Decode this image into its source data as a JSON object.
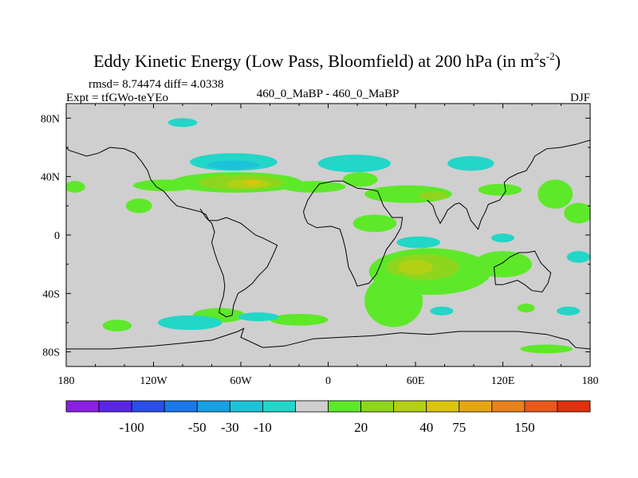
{
  "chart_data": {
    "type": "heatmap",
    "title_main": "Eddy Kinetic Energy (Low Pass, Bloomfield) at 200 hPa (in m",
    "title_sup1": "2",
    "title_s": "s",
    "title_sup2": "-2",
    "title_close": ")",
    "stats": "rmsd= 8.74474 diff= 4.0338",
    "experiment": "Expt = tfGWo-teYEo",
    "comparison": "460_0_MaBP - 460_0_MaBP",
    "season": "DJF",
    "x_ticks": [
      "180",
      "120W",
      "60W",
      "0",
      "60E",
      "120E",
      "180"
    ],
    "x_values": [
      -180,
      -120,
      -60,
      0,
      60,
      120,
      180
    ],
    "y_ticks": [
      "80N",
      "40N",
      "0",
      "40S",
      "80S"
    ],
    "y_values": [
      80,
      40,
      0,
      -40,
      -80
    ],
    "xlim": [
      -180,
      180
    ],
    "ylim": [
      -90,
      90
    ],
    "colorbar": {
      "colors": [
        "#8a1fe0",
        "#5a26e6",
        "#2b4ee8",
        "#1a78e8",
        "#18a0e2",
        "#1cc3d8",
        "#22d6c8",
        "#cfcfcf",
        "#5ee82a",
        "#8ed61e",
        "#b4d014",
        "#dcc40c",
        "#e6a614",
        "#e8821c",
        "#e85a1c",
        "#e0300e"
      ],
      "labels": [
        "-100",
        "-50",
        "-30",
        "-10",
        "20",
        "40",
        "75",
        "150"
      ],
      "label_after_box": [
        2,
        4,
        5,
        6,
        9,
        11,
        12,
        14
      ]
    },
    "blobs": [
      {
        "lon": -63,
        "lat": 36,
        "r_lon": 45,
        "r_lat": 7,
        "level": 8
      },
      {
        "lon": -60,
        "lat": 36,
        "r_lon": 30,
        "r_lat": 5,
        "level": 9
      },
      {
        "lon": -55,
        "lat": 35,
        "r_lon": 15,
        "r_lat": 3,
        "level": 10
      },
      {
        "lon": -52,
        "lat": 36,
        "r_lon": 5,
        "r_lat": 2,
        "level": 11
      },
      {
        "lon": -112,
        "lat": 34,
        "r_lon": 22,
        "r_lat": 4,
        "level": 8
      },
      {
        "lon": -10,
        "lat": 33,
        "r_lon": 22,
        "r_lat": 4,
        "level": 8
      },
      {
        "lon": 22,
        "lat": 38,
        "r_lon": 12,
        "r_lat": 5,
        "level": 8
      },
      {
        "lon": 55,
        "lat": 28,
        "r_lon": 30,
        "r_lat": 6,
        "level": 8
      },
      {
        "lon": 72,
        "lat": 27,
        "r_lon": 10,
        "r_lat": 3,
        "level": 9
      },
      {
        "lon": 118,
        "lat": 31,
        "r_lon": 15,
        "r_lat": 4,
        "level": 8
      },
      {
        "lon": -174,
        "lat": 33,
        "r_lon": 7,
        "r_lat": 4,
        "level": 8
      },
      {
        "lon": -130,
        "lat": 20,
        "r_lon": 9,
        "r_lat": 5,
        "level": 8
      },
      {
        "lon": 156,
        "lat": 28,
        "r_lon": 12,
        "r_lat": 10,
        "level": 8
      },
      {
        "lon": 172,
        "lat": 15,
        "r_lon": 10,
        "r_lat": 7,
        "level": 8
      },
      {
        "lon": 32,
        "lat": 8,
        "r_lon": 15,
        "r_lat": 6,
        "level": 8
      },
      {
        "lon": 70,
        "lat": -25,
        "r_lon": 42,
        "r_lat": 16,
        "level": 8
      },
      {
        "lon": 65,
        "lat": -22,
        "r_lon": 25,
        "r_lat": 9,
        "level": 9
      },
      {
        "lon": 60,
        "lat": -22,
        "r_lon": 12,
        "r_lat": 5,
        "level": 10
      },
      {
        "lon": 45,
        "lat": -45,
        "r_lon": 20,
        "r_lat": 18,
        "level": 8
      },
      {
        "lon": 120,
        "lat": -20,
        "r_lon": 20,
        "r_lat": 9,
        "level": 8
      },
      {
        "lon": 136,
        "lat": -50,
        "r_lon": 6,
        "r_lat": 3,
        "level": 8
      },
      {
        "lon": 150,
        "lat": -78,
        "r_lon": 18,
        "r_lat": 3,
        "level": 8
      },
      {
        "lon": -75,
        "lat": -55,
        "r_lon": 18,
        "r_lat": 5,
        "level": 8
      },
      {
        "lon": -20,
        "lat": -58,
        "r_lon": 20,
        "r_lat": 4,
        "level": 8
      },
      {
        "lon": -145,
        "lat": -62,
        "r_lon": 10,
        "r_lat": 4,
        "level": 8
      },
      {
        "lon": -65,
        "lat": 50,
        "r_lon": 30,
        "r_lat": 6,
        "level": 6
      },
      {
        "lon": -65,
        "lat": 48,
        "r_lon": 18,
        "r_lat": 3,
        "level": 5
      },
      {
        "lon": 18,
        "lat": 49,
        "r_lon": 25,
        "r_lat": 6,
        "level": 6
      },
      {
        "lon": 98,
        "lat": 49,
        "r_lon": 16,
        "r_lat": 5,
        "level": 6
      },
      {
        "lon": -100,
        "lat": 77,
        "r_lon": 10,
        "r_lat": 3,
        "level": 6
      },
      {
        "lon": 62,
        "lat": -5,
        "r_lon": 15,
        "r_lat": 4,
        "level": 6
      },
      {
        "lon": 120,
        "lat": -2,
        "r_lon": 8,
        "r_lat": 3,
        "level": 6
      },
      {
        "lon": 172,
        "lat": -15,
        "r_lon": 8,
        "r_lat": 4,
        "level": 6
      },
      {
        "lon": -95,
        "lat": -60,
        "r_lon": 22,
        "r_lat": 5,
        "level": 6
      },
      {
        "lon": -48,
        "lat": -56,
        "r_lon": 14,
        "r_lat": 3,
        "level": 6
      },
      {
        "lon": 78,
        "lat": -52,
        "r_lon": 8,
        "r_lat": 3,
        "level": 6
      },
      {
        "lon": 165,
        "lat": -52,
        "r_lon": 8,
        "r_lat": 3,
        "level": 6
      }
    ],
    "coastlines": [
      {
        "name": "americas-coast",
        "points": [
          [
            -88,
            18
          ],
          [
            -84,
            12
          ],
          [
            -80,
            8
          ],
          [
            -78,
            2
          ],
          [
            -80,
            -5
          ],
          [
            -78,
            -12
          ],
          [
            -76,
            -18
          ],
          [
            -72,
            -28
          ],
          [
            -71,
            -35
          ],
          [
            -72,
            -42
          ],
          [
            -74,
            -48
          ],
          [
            -75,
            -53
          ],
          [
            -70,
            -56
          ],
          [
            -66,
            -55
          ],
          [
            -65,
            -48
          ],
          [
            -62,
            -40
          ],
          [
            -57,
            -37
          ],
          [
            -52,
            -33
          ],
          [
            -48,
            -28
          ],
          [
            -42,
            -22
          ],
          [
            -38,
            -14
          ],
          [
            -35,
            -7
          ],
          [
            -45,
            -2
          ],
          [
            -50,
            0
          ],
          [
            -60,
            8
          ],
          [
            -70,
            12
          ],
          [
            -76,
            10
          ],
          [
            -82,
            10
          ],
          [
            -84,
            14
          ],
          [
            -88,
            16
          ],
          [
            -96,
            18
          ],
          [
            -104,
            20
          ],
          [
            -108,
            24
          ],
          [
            -113,
            30
          ],
          [
            -118,
            33
          ],
          [
            -122,
            38
          ],
          [
            -124,
            44
          ],
          [
            -128,
            50
          ],
          [
            -133,
            56
          ],
          [
            -140,
            59
          ],
          [
            -150,
            60
          ],
          [
            -158,
            56
          ],
          [
            -166,
            54
          ],
          [
            -172,
            56
          ],
          [
            -178,
            58
          ],
          [
            -180,
            60
          ]
        ]
      },
      {
        "name": "africa-coast",
        "points": [
          [
            -16,
            12
          ],
          [
            -17,
            16
          ],
          [
            -14,
            24
          ],
          [
            -10,
            30
          ],
          [
            -6,
            35
          ],
          [
            4,
            37
          ],
          [
            10,
            37
          ],
          [
            20,
            32
          ],
          [
            30,
            31
          ],
          [
            34,
            30
          ],
          [
            38,
            20
          ],
          [
            44,
            12
          ],
          [
            51,
            12
          ],
          [
            50,
            5
          ],
          [
            46,
            -2
          ],
          [
            40,
            -10
          ],
          [
            36,
            -20
          ],
          [
            33,
            -27
          ],
          [
            28,
            -33
          ],
          [
            20,
            -35
          ],
          [
            18,
            -30
          ],
          [
            14,
            -22
          ],
          [
            12,
            -10
          ],
          [
            10,
            -2
          ],
          [
            8,
            4
          ],
          [
            2,
            6
          ],
          [
            -8,
            5
          ],
          [
            -14,
            8
          ],
          [
            -16,
            12
          ]
        ]
      },
      {
        "name": "india-coast",
        "points": [
          [
            68,
            24
          ],
          [
            72,
            20
          ],
          [
            74,
            14
          ],
          [
            77,
            8
          ],
          [
            80,
            13
          ],
          [
            82,
            17
          ],
          [
            87,
            21
          ],
          [
            90,
            22
          ]
        ]
      },
      {
        "name": "asia-coast",
        "points": [
          [
            90,
            22
          ],
          [
            95,
            18
          ],
          [
            98,
            10
          ],
          [
            103,
            4
          ],
          [
            105,
            10
          ],
          [
            108,
            16
          ],
          [
            110,
            21
          ],
          [
            118,
            24
          ],
          [
            122,
            30
          ],
          [
            121,
            36
          ],
          [
            124,
            39
          ],
          [
            130,
            42
          ],
          [
            136,
            44
          ],
          [
            140,
            50
          ],
          [
            142,
            54
          ],
          [
            150,
            59
          ],
          [
            160,
            60
          ],
          [
            170,
            62
          ],
          [
            180,
            65
          ]
        ]
      },
      {
        "name": "australia-coast",
        "points": [
          [
            114,
            -22
          ],
          [
            115,
            -34
          ],
          [
            120,
            -34
          ],
          [
            130,
            -31
          ],
          [
            135,
            -34
          ],
          [
            140,
            -38
          ],
          [
            147,
            -39
          ],
          [
            151,
            -33
          ],
          [
            153,
            -26
          ],
          [
            146,
            -19
          ],
          [
            142,
            -11
          ],
          [
            137,
            -12
          ],
          [
            131,
            -12
          ],
          [
            125,
            -15
          ],
          [
            120,
            -19
          ],
          [
            114,
            -22
          ]
        ]
      },
      {
        "name": "antarctica-coast",
        "points": [
          [
            -180,
            -78
          ],
          [
            -150,
            -78
          ],
          [
            -120,
            -76
          ],
          [
            -100,
            -74
          ],
          [
            -80,
            -72
          ],
          [
            -62,
            -66
          ],
          [
            -58,
            -64
          ],
          [
            -60,
            -70
          ],
          [
            -45,
            -77
          ],
          [
            -30,
            -76
          ],
          [
            -10,
            -71
          ],
          [
            10,
            -70
          ],
          [
            30,
            -69
          ],
          [
            50,
            -67
          ],
          [
            70,
            -68
          ],
          [
            90,
            -66
          ],
          [
            110,
            -66
          ],
          [
            130,
            -66
          ],
          [
            150,
            -68
          ],
          [
            165,
            -72
          ],
          [
            170,
            -77
          ],
          [
            180,
            -78
          ]
        ]
      }
    ]
  }
}
